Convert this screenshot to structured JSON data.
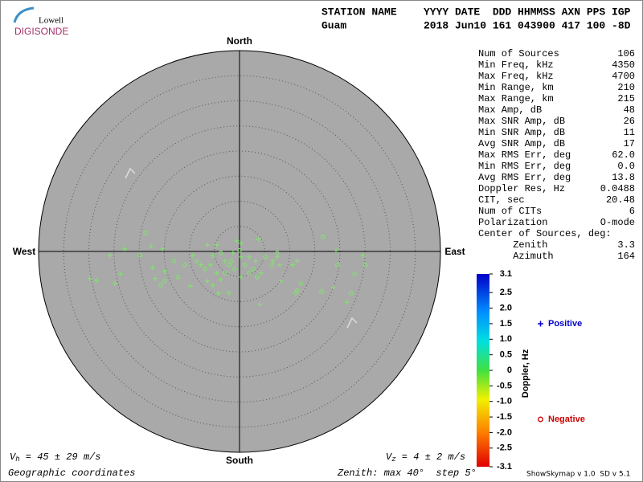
{
  "header": {
    "logo_top": "Lowell",
    "logo_bottom": "DIGISONDE",
    "station_label": "STATION NAME",
    "station": "Guam",
    "columns_label": "YYYY DATE  DDD HHMMSS AXN PPS IGP",
    "columns_values": "2018 Jun10 161 043900 417 100 -8D"
  },
  "stats": {
    "rows": [
      [
        "Num of Sources",
        "106"
      ],
      [
        "Min Freq, kHz",
        "4350"
      ],
      [
        "Max Freq, kHz",
        "4700"
      ],
      [
        "Min Range, km",
        "210"
      ],
      [
        "Max Range, km",
        "215"
      ],
      [
        "Max Amp, dB",
        "48"
      ],
      [
        "Max SNR Amp, dB",
        "26"
      ],
      [
        "Min SNR Amp, dB",
        "11"
      ],
      [
        "Avg SNR Amp, dB",
        "17"
      ],
      [
        "Max RMS Err, deg",
        "62.0"
      ],
      [
        "Min RMS Err, deg",
        "0.0"
      ],
      [
        "Avg RMS Err, deg",
        "13.8"
      ],
      [
        "Doppler Res, Hz",
        "0.0488"
      ],
      [
        "CIT, sec",
        "20.48"
      ],
      [
        "Num of CITs",
        "6"
      ],
      [
        "Polarization",
        "O-mode"
      ],
      [
        "Center of Sources, deg:"
      ],
      [
        "      Zenith",
        "3.3"
      ],
      [
        "      Azimuth",
        "164"
      ]
    ]
  },
  "chart_data": {
    "type": "polar-scatter",
    "north": "North",
    "south": "South",
    "east": "East",
    "west": "West",
    "rlim": [
      0,
      40
    ],
    "rticks": [
      5,
      10,
      15,
      20,
      25,
      30,
      35
    ],
    "series": [
      {
        "name": "Positive",
        "marker": "plus",
        "color": "#7ee86a",
        "legend_color": "#0000c8",
        "x": [
          -22.9,
          -25.8,
          -29.8,
          -28.5,
          -24.8,
          -23.7,
          -17.6,
          -15.4,
          -17.3,
          -16.8,
          -14.9,
          -9.8,
          -9.3,
          -7.7,
          -6.4,
          -5.8,
          -5.3,
          -4.5,
          -6.4,
          -5.3,
          -4.5,
          -3.7,
          -2.1,
          -4.2,
          -2.9,
          -1.3,
          0.3,
          0.3,
          1.9,
          3.8,
          3.2,
          4.3,
          6.7,
          7.5,
          8.0,
          10.6,
          11.5,
          8.3,
          4.0,
          19.2,
          24.6,
          21.4,
          18.7,
          0.3,
          -0.5
        ],
        "y": [
          0.5,
          -0.8,
          -5.4,
          -5.8,
          -6.4,
          -4.5,
          1.0,
          0.5,
          -3.2,
          -5.4,
          -4.0,
          -6.9,
          -0.8,
          -2.7,
          1.3,
          -2.7,
          -0.8,
          1.3,
          -5.9,
          -6.7,
          -4.3,
          -5.6,
          -8.3,
          -8.3,
          -1.9,
          -0.3,
          -1.1,
          -5.1,
          -1.1,
          2.4,
          -1.9,
          -4.3,
          -1.9,
          -1.1,
          -2.7,
          -2.7,
          -1.9,
          -5.9,
          -10.6,
          0.2,
          -0.8,
          -10.1,
          -7.2,
          1.6,
          2.1
        ]
      },
      {
        "name": "Negative",
        "marker": "circle",
        "color": "#7ee86a",
        "legend_color": "#d00000",
        "x": [
          -18.7,
          -19.8,
          -15.7,
          -14.9,
          -12.2,
          -10.9,
          -8.5,
          -6.9,
          -3.7,
          -2.9,
          -2.1,
          -1.6,
          -1.0,
          0.0,
          1.1,
          1.9,
          2.7,
          3.5,
          5.1,
          6.4,
          7.5,
          11.5,
          12.2,
          11.2,
          16.3,
          16.6,
          19.5,
          22.9,
          25.1,
          22.2,
          -13.1
        ],
        "y": [
          3.7,
          -0.8,
          -6.7,
          -5.9,
          -5.1,
          -2.7,
          -1.9,
          -3.5,
          -0.3,
          -4.3,
          -2.7,
          -1.9,
          -3.5,
          0.2,
          -2.7,
          -4.3,
          -3.5,
          -5.1,
          -1.1,
          -2.7,
          -0.3,
          -7.8,
          -6.4,
          -8.3,
          -8.0,
          2.9,
          -2.7,
          -4.5,
          -2.7,
          -8.3,
          -1.9
        ]
      }
    ],
    "colorbar": {
      "label": "Doppler, Hz",
      "zlim": [
        -3.1,
        3.1
      ],
      "zticks": [
        3.1,
        2.5,
        {
          "value": 2,
          "label": "2.0"
        },
        1.5,
        {
          "value": 1,
          "label": "1.0"
        },
        0.5,
        0,
        -0.5,
        {
          "value": -1,
          "label": "-1.0"
        },
        -1.5,
        {
          "value": -2,
          "label": "-2.0"
        },
        -2.5,
        -3.1
      ]
    }
  },
  "footer": {
    "vh_symbol": "V",
    "vh_sub": "h",
    "vh_text": " = 45 ± 29 m/s",
    "vz_symbol": "V",
    "vz_sub": "z",
    "vz_text": " = 4 ± 2 m/s",
    "coordinates": "Geographic coordinates",
    "zenith": "Zenith: max 40°  step 5°",
    "version": "ShowSkymap v 1.0  SD v 5.1"
  }
}
